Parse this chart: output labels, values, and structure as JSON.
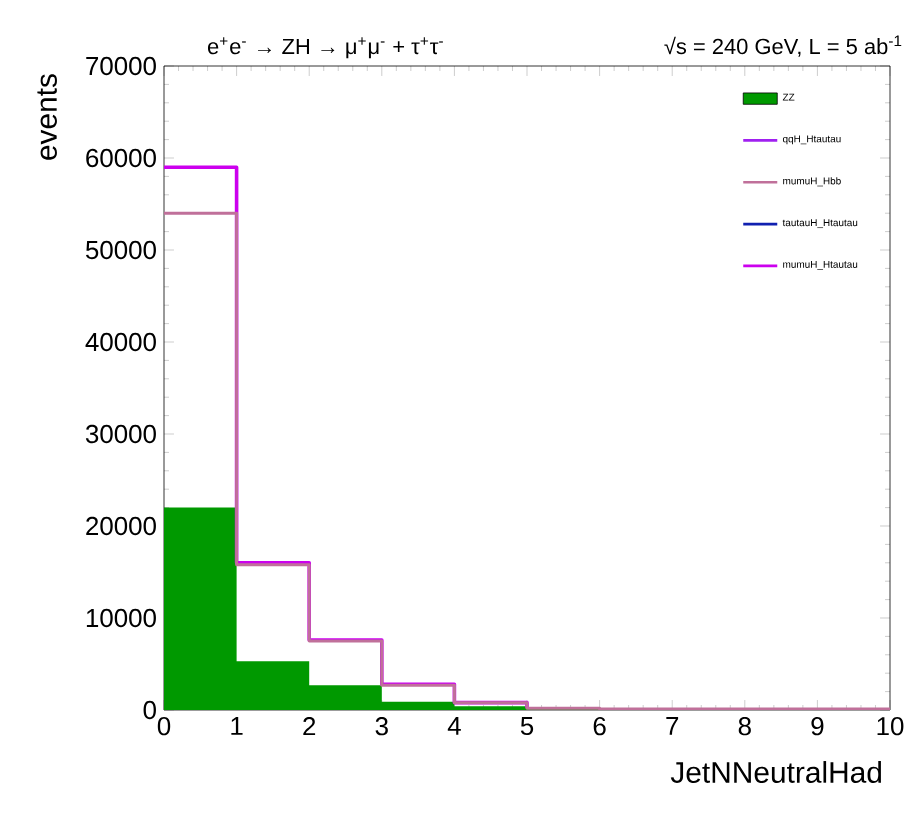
{
  "chart_data": {
    "type": "step",
    "title": "e$^{+}$e$^{-}$ → ZH → μ$^{+}$μ$^{-}$ + τ$^{+}$τ$^{-}$",
    "subtitle": "√s = 240 GeV,   L = 5 ab$^{-1}$",
    "xlabel": "JetNNeutralHad",
    "ylabel": "events",
    "x": [
      0,
      1,
      2,
      3,
      4,
      5,
      6,
      7,
      8,
      9,
      10
    ],
    "series": [
      {
        "name": "ZZ",
        "type": "area",
        "color": "#009900",
        "values": [
          22000,
          5300,
          2700,
          900,
          400,
          200,
          100,
          100,
          100,
          100,
          100
        ]
      },
      {
        "name": "qqH_Htautau",
        "color": "#a020f0",
        "values": [
          null,
          null,
          null,
          null,
          null,
          null,
          null,
          null,
          null,
          null,
          null
        ]
      },
      {
        "name": "mumuH_Hbb",
        "color": "#c0709a",
        "values": [
          54000,
          15800,
          7500,
          2700,
          800,
          200,
          100,
          100,
          100,
          100,
          100
        ]
      },
      {
        "name": "tautauH_Htautau",
        "color": "#1020b0",
        "values": [
          null,
          null,
          null,
          null,
          null,
          null,
          null,
          null,
          null,
          null,
          null
        ]
      },
      {
        "name": "mumuH_Htautau",
        "color": "#cc00ee",
        "values": [
          59000,
          16000,
          7600,
          2800,
          800,
          200,
          null,
          null,
          null,
          null,
          null
        ]
      }
    ],
    "xlim": [
      0,
      10
    ],
    "ylim": [
      0,
      70000
    ],
    "xticks": [
      0,
      1,
      2,
      3,
      4,
      5,
      6,
      7,
      8,
      9,
      10
    ],
    "yticks": [
      0,
      10000,
      20000,
      30000,
      40000,
      50000,
      60000,
      70000
    ],
    "legend": "top right",
    "grid": false
  }
}
